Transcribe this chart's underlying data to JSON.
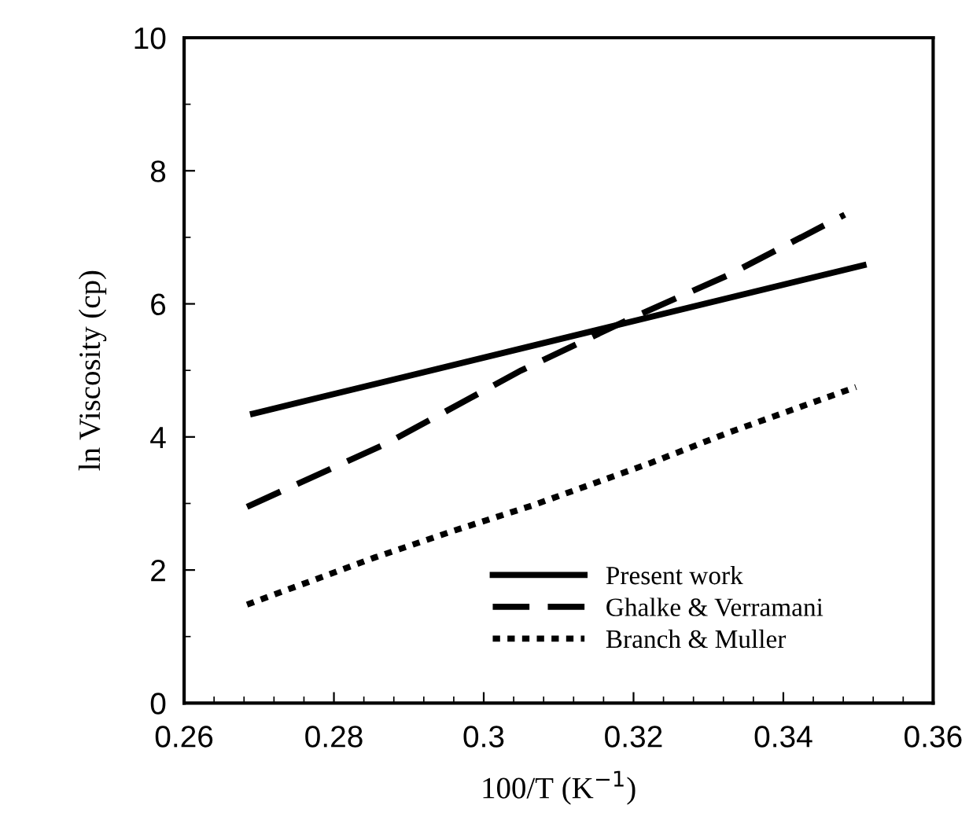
{
  "chart_data": {
    "type": "line",
    "xlabel": "100/T (K$^{−1}$)",
    "ylabel": "ln Viscosity (cp)",
    "xlim": [
      0.26,
      0.36
    ],
    "xticks": [
      0.26,
      0.28,
      {
        "value": 0.3,
        "label": "0.3"
      },
      0.32,
      0.34,
      0.36
    ],
    "ylim": [
      0,
      10
    ],
    "yticks": [
      0,
      2,
      4,
      6,
      8,
      10
    ],
    "grid": false,
    "legend": "bottom right",
    "marker": "none",
    "series": [
      {
        "name": "Present work",
        "color": "#000000",
        "line_style": "solid",
        "x": [
          0.2692,
          0.3507
        ],
        "values": [
          4.35,
          6.58
        ]
      },
      {
        "name": "Ghalke & Verramani",
        "color": "#000000",
        "line_style": "dashed",
        "x": [
          0.2684,
          0.287,
          0.305,
          0.32,
          0.3328,
          0.3482
        ],
        "values": [
          2.95,
          3.9,
          5.0,
          5.8,
          6.44,
          7.34
        ]
      },
      {
        "name": "Branch & Muller",
        "color": "#000000",
        "line_style": "dotted",
        "x": [
          0.2684,
          0.2855,
          0.296,
          0.3065,
          0.3223,
          0.3328,
          0.3497
        ],
        "values": [
          1.48,
          2.19,
          2.59,
          2.97,
          3.61,
          4.07,
          4.75
        ]
      }
    ]
  }
}
